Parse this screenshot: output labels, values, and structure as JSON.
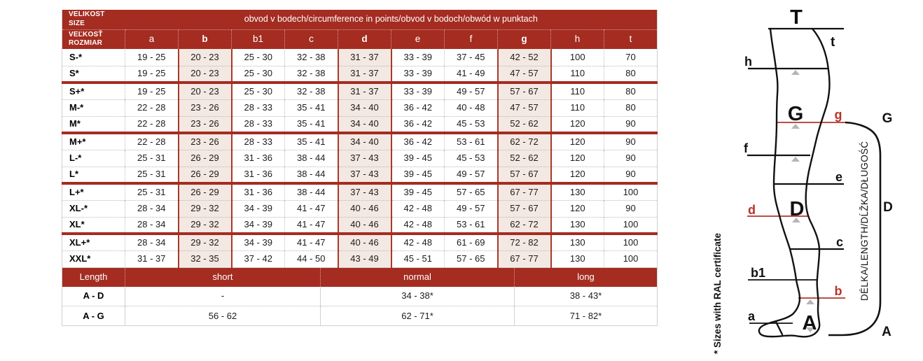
{
  "colors": {
    "table_red": "#a42c21",
    "highlight_bg": "#f4e8e2",
    "highlight_border": "#a8392c",
    "diagram_red": "#b5342a",
    "triangle_gray": "#b5b5b5"
  },
  "size_table": {
    "corner": {
      "line1": "VELIKOST",
      "line2": "SIZE",
      "line3": "VEĽKOSŤ",
      "line4": "ROZMIAR"
    },
    "circumference_title": "obvod v bodech/circumference in points/obvod v bodoch/obwód w punktach",
    "columns": [
      "a",
      "b",
      "b1",
      "c",
      "d",
      "e",
      "f",
      "g",
      "h",
      "t"
    ],
    "highlight_indexes": [
      1,
      4,
      7
    ],
    "rows": [
      {
        "size": "S-*",
        "group_start": false,
        "values": [
          "19 - 25",
          "20 - 23",
          "25 - 30",
          "32 - 38",
          "31 - 37",
          "33 - 39",
          "37 - 45",
          "42 - 52",
          "100",
          "70"
        ]
      },
      {
        "size": "S*",
        "group_start": false,
        "values": [
          "19 - 25",
          "20 - 23",
          "25 - 30",
          "32 - 38",
          "31 - 37",
          "33 - 39",
          "41 - 49",
          "47 - 57",
          "110",
          "80"
        ]
      },
      {
        "size": "S+*",
        "group_start": true,
        "values": [
          "19 - 25",
          "20 - 23",
          "25 - 30",
          "32 - 38",
          "31 - 37",
          "33 - 39",
          "49 - 57",
          "57 - 67",
          "110",
          "80"
        ]
      },
      {
        "size": "M-*",
        "group_start": false,
        "values": [
          "22 - 28",
          "23 - 26",
          "28 - 33",
          "35 - 41",
          "34 - 40",
          "36 - 42",
          "40 - 48",
          "47 - 57",
          "110",
          "80"
        ]
      },
      {
        "size": "M*",
        "group_start": false,
        "values": [
          "22 - 28",
          "23 - 26",
          "28 - 33",
          "35 - 41",
          "34 - 40",
          "36 - 42",
          "45 - 53",
          "52 - 62",
          "120",
          "90"
        ]
      },
      {
        "size": "M+*",
        "group_start": true,
        "values": [
          "22 - 28",
          "23 - 26",
          "28 - 33",
          "35 - 41",
          "34 - 40",
          "36 - 42",
          "53 - 61",
          "62 - 72",
          "120",
          "90"
        ]
      },
      {
        "size": "L-*",
        "group_start": false,
        "values": [
          "25 - 31",
          "26 - 29",
          "31 - 36",
          "38 - 44",
          "37 - 43",
          "39 - 45",
          "45 - 53",
          "52 - 62",
          "120",
          "90"
        ]
      },
      {
        "size": "L*",
        "group_start": false,
        "values": [
          "25 - 31",
          "26 - 29",
          "31 - 36",
          "38 - 44",
          "37 - 43",
          "39 - 45",
          "49 - 57",
          "57 - 67",
          "120",
          "90"
        ]
      },
      {
        "size": "L+*",
        "group_start": true,
        "values": [
          "25 - 31",
          "26 - 29",
          "31 - 36",
          "38 - 44",
          "37 - 43",
          "39 - 45",
          "57 - 65",
          "67 - 77",
          "130",
          "100"
        ]
      },
      {
        "size": "XL-*",
        "group_start": false,
        "values": [
          "28 - 34",
          "29 - 32",
          "34 - 39",
          "41 - 47",
          "40 - 46",
          "42 - 48",
          "49 - 57",
          "57 - 67",
          "120",
          "90"
        ]
      },
      {
        "size": "XL*",
        "group_start": false,
        "values": [
          "28 - 34",
          "29 - 32",
          "34 - 39",
          "41 - 47",
          "40 - 46",
          "42 - 48",
          "53 - 61",
          "62 - 72",
          "130",
          "100"
        ]
      },
      {
        "size": "XL+*",
        "group_start": true,
        "values": [
          "28 - 34",
          "29 - 32",
          "34 - 39",
          "41 - 47",
          "40 - 46",
          "42 - 48",
          "61 - 69",
          "72 - 82",
          "130",
          "100"
        ]
      },
      {
        "size": "XXL*",
        "group_start": false,
        "values": [
          "31 - 37",
          "32 - 35",
          "37 - 42",
          "44 - 50",
          "43 - 49",
          "45 - 51",
          "57 - 65",
          "67 - 77",
          "130",
          "100"
        ]
      }
    ]
  },
  "length_table": {
    "header": [
      "Length",
      "short",
      "normal",
      "long"
    ],
    "rows": [
      {
        "label": "A - D",
        "values": [
          "-",
          "34 - 38*",
          "38 - 43*"
        ]
      },
      {
        "label": "A - G",
        "values": [
          "56 - 62",
          "62 - 71*",
          "71 - 82*"
        ]
      }
    ]
  },
  "footnote": "* Sizes with RAL certificate",
  "diagram": {
    "labels": {
      "T": "T",
      "t": "t",
      "h": "h",
      "G_leg": "G",
      "g": "g",
      "G_bracket": "G",
      "f": "f",
      "e": "e",
      "d": "d",
      "D_leg": "D",
      "D_bracket": "D",
      "c": "c",
      "b1": "b1",
      "b": "b",
      "a": "a",
      "A_leg": "A",
      "A_bracket": "A"
    },
    "length_caption": "DÉLKA/LENGTH/DĹŽKA/DŁUGOŚĆ"
  }
}
